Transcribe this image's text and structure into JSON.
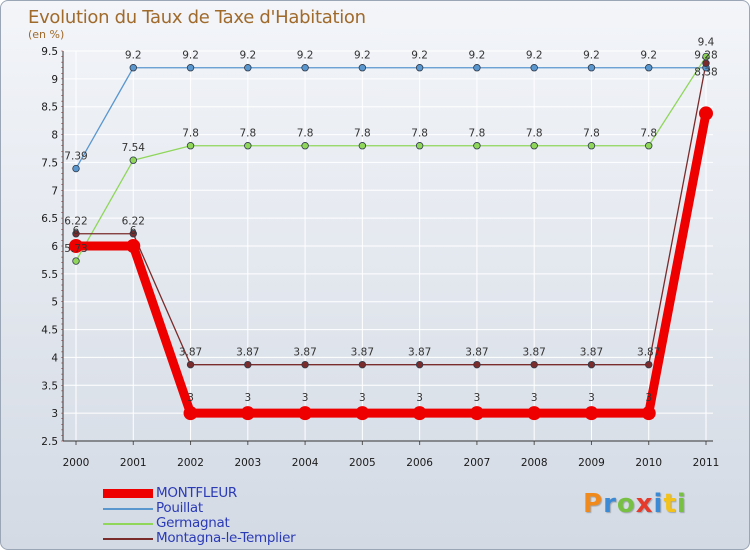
{
  "chart_data": {
    "type": "line",
    "title": "Evolution du Taux de Taxe d'Habitation",
    "ylabel": "(en %)",
    "xlabel": "",
    "ylim": [
      2.5,
      9.5
    ],
    "yticks": [
      "2.5",
      "3",
      "3.5",
      "4",
      "4.5",
      "5",
      "5.5",
      "6",
      "6.5",
      "7",
      "7.5",
      "8",
      "8.5",
      "9",
      "9.5"
    ],
    "categories": [
      "2000",
      "2001",
      "2002",
      "2003",
      "2004",
      "2005",
      "2006",
      "2007",
      "2008",
      "2009",
      "2010",
      "2011"
    ],
    "series": [
      {
        "name": "Pouillat",
        "color": "#5a97cf",
        "values": [
          7.39,
          9.2,
          9.2,
          9.2,
          9.2,
          9.2,
          9.2,
          9.2,
          9.2,
          9.2,
          9.2,
          9.2
        ],
        "labels": [
          "7.39",
          "9.2",
          "9.2",
          "9.2",
          "9.2",
          "9.2",
          "9.2",
          "9.2",
          "9.2",
          "9.2",
          "9.2",
          ""
        ]
      },
      {
        "name": "Germagnat",
        "color": "#8fd65a",
        "values": [
          5.73,
          7.54,
          7.8,
          7.8,
          7.8,
          7.8,
          7.8,
          7.8,
          7.8,
          7.8,
          7.8,
          9.4
        ],
        "labels": [
          "5.73",
          "7.54",
          "7.8",
          "7.8",
          "7.8",
          "7.8",
          "7.8",
          "7.8",
          "7.8",
          "7.8",
          "7.8",
          "9.4"
        ]
      },
      {
        "name": "Montagna-le-Templier",
        "color": "#7a2b2b",
        "values": [
          6.22,
          6.22,
          3.87,
          3.87,
          3.87,
          3.87,
          3.87,
          3.87,
          3.87,
          3.87,
          3.87,
          9.28
        ],
        "labels": [
          "6.22",
          "6.22",
          "3.87",
          "3.87",
          "3.87",
          "3.87",
          "3.87",
          "3.87",
          "3.87",
          "3.87",
          "3.87",
          "9.28"
        ]
      },
      {
        "name": "MONTFLEUR",
        "color": "#ee0000",
        "values": [
          6.0,
          6.0,
          3.0,
          3.0,
          3.0,
          3.0,
          3.0,
          3.0,
          3.0,
          3.0,
          3.0,
          8.38
        ],
        "labels": [
          "6",
          "6",
          "3",
          "3",
          "3",
          "3",
          "3",
          "3",
          "3",
          "3",
          "3",
          "8.38"
        ]
      }
    ],
    "legend": [
      "MONTFLEUR",
      "Pouillat",
      "Germagnat",
      "Montagna-le-Templier"
    ]
  },
  "brand": {
    "letters": [
      "P",
      "r",
      "o",
      "x",
      "i",
      "t",
      "i"
    ]
  }
}
